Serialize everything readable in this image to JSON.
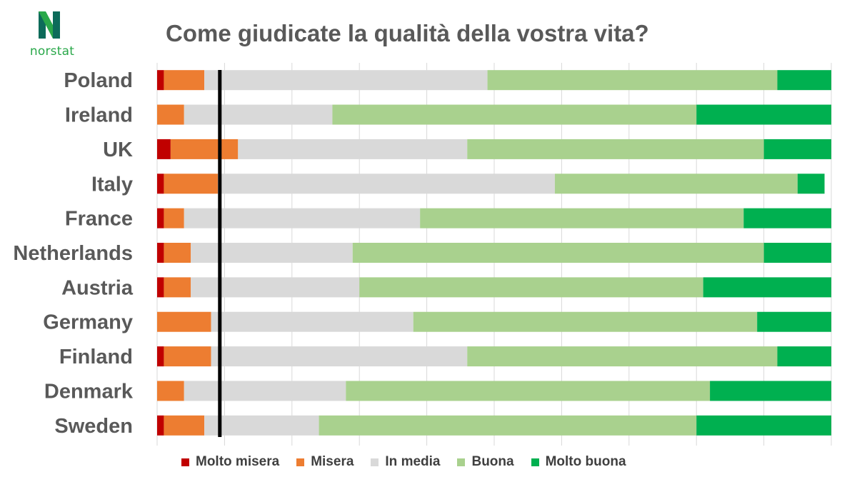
{
  "brand": {
    "name": "norstat",
    "logo_letter": "N"
  },
  "chart_data": {
    "type": "bar",
    "orientation": "horizontal",
    "stacked": "100%",
    "title": "Come giudicate la qualità della vostra vita?",
    "categories": [
      "Poland",
      "Ireland",
      "UK",
      "Italy",
      "France",
      "Netherlands",
      "Austria",
      "Germany",
      "Finland",
      "Denmark",
      "Sweden"
    ],
    "series": [
      {
        "name": "Molto misera",
        "color": "#c00000",
        "values": [
          1,
          0,
          2,
          1,
          1,
          1,
          1,
          0,
          1,
          0,
          1
        ]
      },
      {
        "name": "Misera",
        "color": "#ed7d31",
        "values": [
          6,
          4,
          10,
          8,
          3,
          4,
          4,
          8,
          7,
          4,
          6
        ]
      },
      {
        "name": "In media",
        "color": "#d9d9d9",
        "values": [
          42,
          22,
          34,
          50,
          35,
          24,
          25,
          30,
          38,
          24,
          17
        ]
      },
      {
        "name": "Buona",
        "color": "#a9d18e",
        "values": [
          43,
          54,
          44,
          36,
          48,
          61,
          51,
          51,
          46,
          54,
          56
        ]
      },
      {
        "name": "Molto buona",
        "color": "#00b050",
        "values": [
          8,
          20,
          10,
          4,
          13,
          10,
          19,
          11,
          8,
          18,
          20
        ]
      }
    ],
    "xlim": [
      0,
      100
    ],
    "reference_line": {
      "value": 9.3,
      "color": "#000000"
    },
    "grid": "vertical",
    "legend_position": "bottom"
  }
}
